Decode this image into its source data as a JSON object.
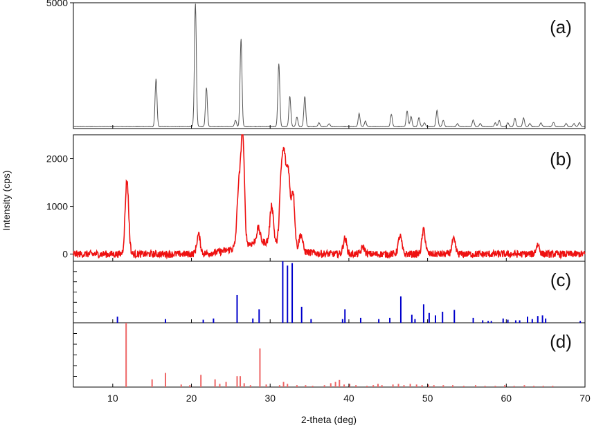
{
  "chart_data": {
    "type": "line",
    "xlabel": "2-theta (deg)",
    "ylabel": "Intensity (cps)",
    "xlim": [
      5,
      70
    ],
    "x_ticks": [
      "10",
      "20",
      "30",
      "40",
      "50",
      "60",
      "70"
    ],
    "panels": [
      {
        "label": "(a)",
        "kind": "profile",
        "color": "#555555",
        "ylim": [
          0,
          5000
        ],
        "y_ticks": [
          "5000"
        ],
        "y_tick_values": [
          5000
        ],
        "baseline": 80,
        "peaks": [
          {
            "x": 15.5,
            "y": 1900
          },
          {
            "x": 20.5,
            "y": 4900
          },
          {
            "x": 21.9,
            "y": 1550
          },
          {
            "x": 25.6,
            "y": 250
          },
          {
            "x": 26.3,
            "y": 3500
          },
          {
            "x": 31.1,
            "y": 2500
          },
          {
            "x": 32.5,
            "y": 1200
          },
          {
            "x": 33.4,
            "y": 380
          },
          {
            "x": 34.4,
            "y": 1200
          },
          {
            "x": 36.2,
            "y": 150
          },
          {
            "x": 37.5,
            "y": 120
          },
          {
            "x": 41.3,
            "y": 520
          },
          {
            "x": 42.1,
            "y": 220
          },
          {
            "x": 45.4,
            "y": 480
          },
          {
            "x": 47.4,
            "y": 620
          },
          {
            "x": 47.9,
            "y": 400
          },
          {
            "x": 48.9,
            "y": 360
          },
          {
            "x": 49.6,
            "y": 150
          },
          {
            "x": 51.2,
            "y": 650
          },
          {
            "x": 52.0,
            "y": 250
          },
          {
            "x": 53.8,
            "y": 120
          },
          {
            "x": 55.8,
            "y": 260
          },
          {
            "x": 56.7,
            "y": 120
          },
          {
            "x": 58.6,
            "y": 150
          },
          {
            "x": 59.1,
            "y": 240
          },
          {
            "x": 60.2,
            "y": 150
          },
          {
            "x": 61.1,
            "y": 330
          },
          {
            "x": 62.2,
            "y": 340
          },
          {
            "x": 63.0,
            "y": 120
          },
          {
            "x": 64.4,
            "y": 150
          },
          {
            "x": 66.0,
            "y": 170
          },
          {
            "x": 67.6,
            "y": 120
          },
          {
            "x": 68.6,
            "y": 120
          },
          {
            "x": 69.3,
            "y": 160
          }
        ]
      },
      {
        "label": "(b)",
        "kind": "profile",
        "color": "#ee1111",
        "ylim": [
          -150,
          2500
        ],
        "y_ticks": [
          "2000",
          "1000",
          "0"
        ],
        "y_tick_values": [
          2000,
          1000,
          0
        ],
        "baseline": 0,
        "peaks": [
          {
            "x": 11.8,
            "y": 1550
          },
          {
            "x": 20.9,
            "y": 400
          },
          {
            "x": 26.0,
            "y": 1200
          },
          {
            "x": 26.5,
            "y": 2350
          },
          {
            "x": 28.5,
            "y": 300
          },
          {
            "x": 30.2,
            "y": 800
          },
          {
            "x": 31.4,
            "y": 1300
          },
          {
            "x": 31.8,
            "y": 1650
          },
          {
            "x": 32.3,
            "y": 1550
          },
          {
            "x": 32.9,
            "y": 1200
          },
          {
            "x": 33.9,
            "y": 350
          },
          {
            "x": 39.5,
            "y": 330
          },
          {
            "x": 41.8,
            "y": 150
          },
          {
            "x": 46.5,
            "y": 380
          },
          {
            "x": 49.5,
            "y": 500
          },
          {
            "x": 53.3,
            "y": 300
          },
          {
            "x": 64.0,
            "y": 200
          }
        ]
      },
      {
        "label": "(c)",
        "kind": "sticks",
        "color": "#0000cc",
        "ylim": [
          0,
          100
        ],
        "sticks": [
          {
            "x": 10.6,
            "y": 10
          },
          {
            "x": 16.7,
            "y": 6
          },
          {
            "x": 21.5,
            "y": 5
          },
          {
            "x": 22.8,
            "y": 7
          },
          {
            "x": 25.8,
            "y": 45
          },
          {
            "x": 27.8,
            "y": 7
          },
          {
            "x": 28.6,
            "y": 22
          },
          {
            "x": 31.6,
            "y": 100
          },
          {
            "x": 32.2,
            "y": 93
          },
          {
            "x": 32.8,
            "y": 97
          },
          {
            "x": 34.0,
            "y": 26
          },
          {
            "x": 35.2,
            "y": 6
          },
          {
            "x": 39.2,
            "y": 6
          },
          {
            "x": 39.5,
            "y": 22
          },
          {
            "x": 41.5,
            "y": 8
          },
          {
            "x": 43.8,
            "y": 6
          },
          {
            "x": 45.2,
            "y": 8
          },
          {
            "x": 46.6,
            "y": 43
          },
          {
            "x": 48.0,
            "y": 13
          },
          {
            "x": 48.4,
            "y": 6
          },
          {
            "x": 49.5,
            "y": 30
          },
          {
            "x": 50.2,
            "y": 16
          },
          {
            "x": 51.0,
            "y": 12
          },
          {
            "x": 51.9,
            "y": 18
          },
          {
            "x": 53.4,
            "y": 21
          },
          {
            "x": 55.8,
            "y": 8
          },
          {
            "x": 57.0,
            "y": 4
          },
          {
            "x": 57.7,
            "y": 3
          },
          {
            "x": 58.1,
            "y": 3
          },
          {
            "x": 59.6,
            "y": 7
          },
          {
            "x": 60.2,
            "y": 5
          },
          {
            "x": 61.2,
            "y": 4
          },
          {
            "x": 61.7,
            "y": 4
          },
          {
            "x": 62.7,
            "y": 10
          },
          {
            "x": 63.3,
            "y": 6
          },
          {
            "x": 64.0,
            "y": 11
          },
          {
            "x": 64.6,
            "y": 12
          },
          {
            "x": 65.0,
            "y": 7
          },
          {
            "x": 69.4,
            "y": 3
          }
        ]
      },
      {
        "label": "(d)",
        "kind": "sticks",
        "color": "#ee6666",
        "ylim": [
          0,
          100
        ],
        "sticks": [
          {
            "x": 11.7,
            "y": 100
          },
          {
            "x": 15.0,
            "y": 12
          },
          {
            "x": 16.7,
            "y": 22
          },
          {
            "x": 18.7,
            "y": 4
          },
          {
            "x": 19.8,
            "y": 3
          },
          {
            "x": 21.2,
            "y": 19
          },
          {
            "x": 23.0,
            "y": 12
          },
          {
            "x": 23.6,
            "y": 5
          },
          {
            "x": 24.4,
            "y": 8
          },
          {
            "x": 25.8,
            "y": 17
          },
          {
            "x": 26.2,
            "y": 17
          },
          {
            "x": 26.7,
            "y": 6
          },
          {
            "x": 27.5,
            "y": 3
          },
          {
            "x": 28.7,
            "y": 60
          },
          {
            "x": 29.5,
            "y": 4
          },
          {
            "x": 31.2,
            "y": 3
          },
          {
            "x": 31.7,
            "y": 8
          },
          {
            "x": 32.2,
            "y": 5
          },
          {
            "x": 33.4,
            "y": 3
          },
          {
            "x": 34.5,
            "y": 3
          },
          {
            "x": 35.4,
            "y": 2
          },
          {
            "x": 36.9,
            "y": 3
          },
          {
            "x": 37.7,
            "y": 6
          },
          {
            "x": 38.3,
            "y": 8
          },
          {
            "x": 38.8,
            "y": 11
          },
          {
            "x": 39.4,
            "y": 4
          },
          {
            "x": 40.1,
            "y": 5
          },
          {
            "x": 40.9,
            "y": 3
          },
          {
            "x": 42.3,
            "y": 2
          },
          {
            "x": 43.1,
            "y": 3
          },
          {
            "x": 43.7,
            "y": 5
          },
          {
            "x": 44.2,
            "y": 3
          },
          {
            "x": 45.6,
            "y": 4
          },
          {
            "x": 46.3,
            "y": 5
          },
          {
            "x": 47.0,
            "y": 3
          },
          {
            "x": 47.8,
            "y": 5
          },
          {
            "x": 48.6,
            "y": 4
          },
          {
            "x": 49.3,
            "y": 3
          },
          {
            "x": 50.1,
            "y": 4
          },
          {
            "x": 50.8,
            "y": 3
          },
          {
            "x": 52.0,
            "y": 3
          },
          {
            "x": 53.2,
            "y": 3
          },
          {
            "x": 54.6,
            "y": 2
          },
          {
            "x": 56.1,
            "y": 3
          },
          {
            "x": 57.3,
            "y": 2
          },
          {
            "x": 58.6,
            "y": 2
          },
          {
            "x": 59.8,
            "y": 3
          },
          {
            "x": 61.0,
            "y": 2
          },
          {
            "x": 62.3,
            "y": 3
          },
          {
            "x": 63.5,
            "y": 2
          },
          {
            "x": 64.7,
            "y": 2
          },
          {
            "x": 65.9,
            "y": 2
          }
        ]
      }
    ]
  }
}
